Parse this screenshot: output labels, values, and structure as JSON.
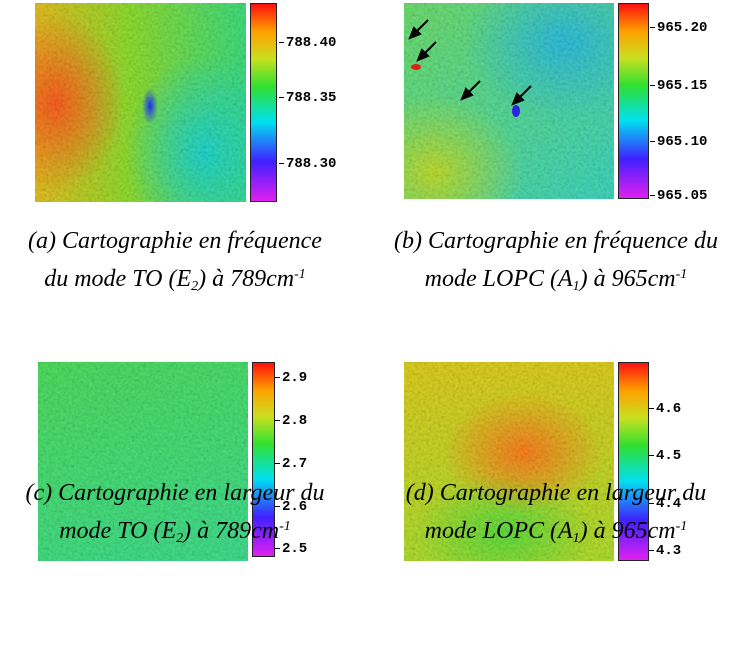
{
  "panels": [
    {
      "colorbar_ticks": [
        "788.40",
        "788.35",
        "788.30"
      ],
      "caption": {
        "line1": "(a) Cartographie en fréquence",
        "line2": [
          "du mode TO (E",
          "2",
          ") à 789cm",
          "-1"
        ]
      }
    },
    {
      "colorbar_ticks": [
        "965.20",
        "965.15",
        "965.10",
        "965.05"
      ],
      "caption": {
        "line1": "(b) Cartographie en fréquence du",
        "line2": [
          "mode LOPC (A",
          "1",
          ") à 965cm",
          "-1"
        ]
      }
    },
    {
      "colorbar_ticks": [
        "2.9",
        "2.8",
        "2.7",
        "2.6",
        "2.5"
      ],
      "caption": {
        "line1": "(c) Cartographie en largeur du",
        "line2": [
          "mode TO (E",
          "2",
          ") à 789cm",
          "-1"
        ]
      }
    },
    {
      "colorbar_ticks": [
        "4.6",
        "4.5",
        "4.4",
        "4.3"
      ],
      "caption": {
        "line1": "(d) Cartographie en largeur du",
        "line2": [
          "mode LOPC (A",
          "1",
          ") à 965cm",
          "-1"
        ]
      }
    }
  ]
}
